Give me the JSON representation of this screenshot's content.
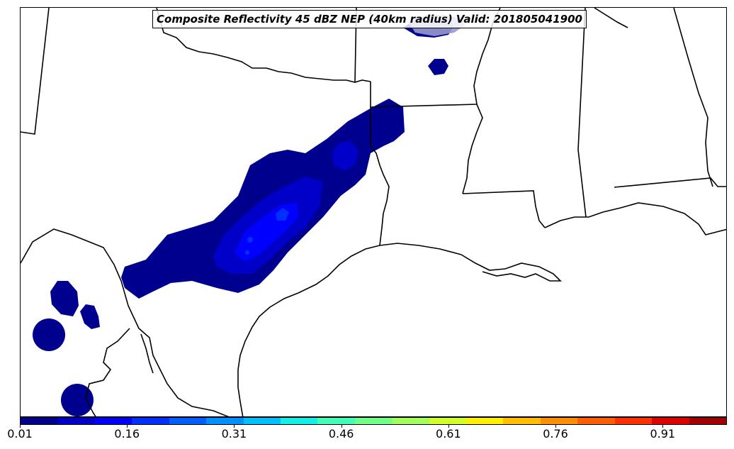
{
  "title": "Composite Reflectivity 45 dBZ NEP (40km radius) Valid: 201805041900",
  "colorbar": {
    "colors": [
      "#00008f",
      "#0000c8",
      "#0000ff",
      "#0030ff",
      "#0060ff",
      "#0090ff",
      "#00c0ff",
      "#10f0e8",
      "#40ffb8",
      "#70ff88",
      "#a0ff58",
      "#d0ff28",
      "#ffef00",
      "#ffbf00",
      "#ff8f00",
      "#ff5f00",
      "#ff2f00",
      "#e00000",
      "#a00000"
    ],
    "tick_labels": [
      "0.01",
      "0.16",
      "0.31",
      "0.46",
      "0.61",
      "0.76",
      "0.91"
    ],
    "min": 0.01,
    "max": 1.0
  },
  "legend_colors": {
    "level_1": "#00008f",
    "level_2": "#0000c8",
    "level_3": "#0000ff",
    "level_4": "#0030ff",
    "highlight": "#9999cc"
  }
}
